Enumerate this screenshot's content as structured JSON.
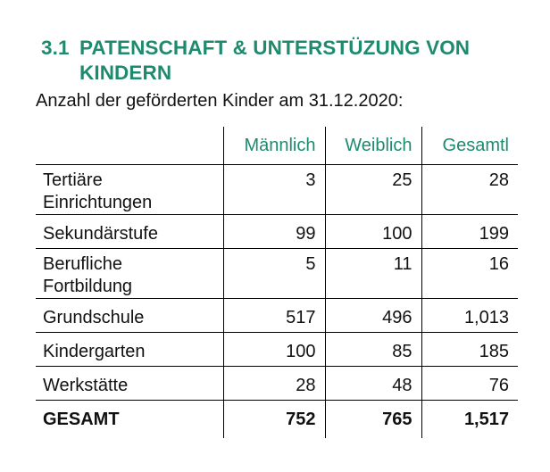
{
  "heading": {
    "number": "3.1",
    "line1": "PATENSCHAFT & UNTERSTÜZUNG VON",
    "line2": "KINDERN",
    "color": "#1e8a6e"
  },
  "subtitle": "Anzahl der geförderten Kinder am 31.12.2020:",
  "table": {
    "columns": [
      "",
      "Männlich",
      "Weiblich",
      "Gesamtl"
    ],
    "header_color": "#1e8a6e",
    "rows": [
      {
        "label": "Tertiäre Einrichtungen",
        "m": "3",
        "w": "25",
        "g": "28"
      },
      {
        "label": "Sekundärstufe",
        "m": "99",
        "w": "100",
        "g": "199"
      },
      {
        "label": "Berufliche Fortbildung",
        "m": "5",
        "w": "11",
        "g": "16"
      },
      {
        "label": "Grundschule",
        "m": "517",
        "w": "496",
        "g": "1,013"
      },
      {
        "label": "Kindergarten",
        "m": "100",
        "w": "85",
        "g": "185"
      },
      {
        "label": "Werkstätte",
        "m": "28",
        "w": "48",
        "g": "76"
      }
    ],
    "total": {
      "label": "GESAMT",
      "m": "752",
      "w": "765",
      "g": "1,517"
    }
  }
}
